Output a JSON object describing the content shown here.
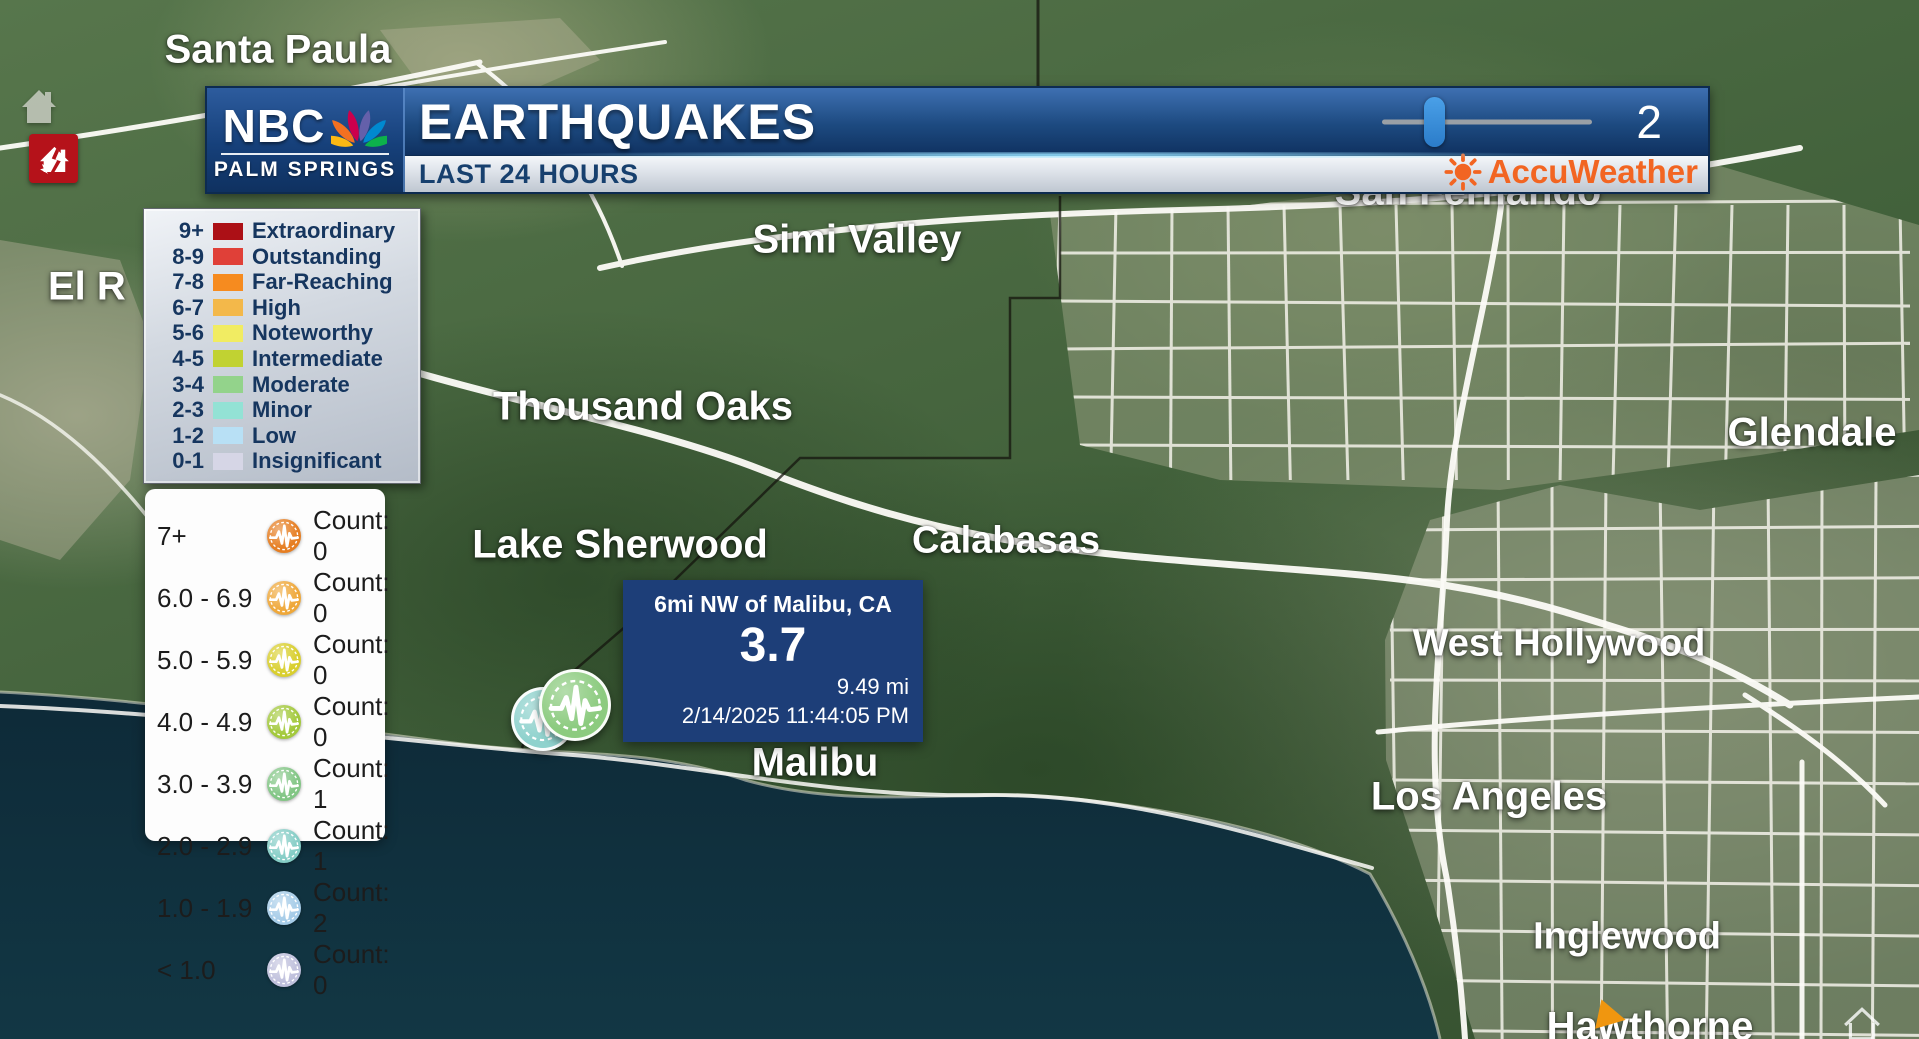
{
  "header": {
    "station_name": "NBC",
    "station_sub": "PALM SPRINGS",
    "title": "EARTHQUAKES",
    "subtitle": "LAST 24 HOURS",
    "slider": {
      "value": "2"
    },
    "accuweather_label": "AccuWeather",
    "colors": {
      "bar_blue": "#1d4a80",
      "silver": "#dde2e9",
      "accu_orange": "#f26522",
      "slider_blue": "#2b7cc9"
    }
  },
  "magnitude_legend": {
    "rows": [
      {
        "range": "9+",
        "label": "Extraordinary",
        "color": "#ac1016"
      },
      {
        "range": "8-9",
        "label": "Outstanding",
        "color": "#e04038"
      },
      {
        "range": "7-8",
        "label": "Far-Reaching",
        "color": "#f68b1f"
      },
      {
        "range": "6-7",
        "label": "High",
        "color": "#f3b84a"
      },
      {
        "range": "5-6",
        "label": "Noteworthy",
        "color": "#f1ec62"
      },
      {
        "range": "4-5",
        "label": "Intermediate",
        "color": "#c1d232"
      },
      {
        "range": "3-4",
        "label": "Moderate",
        "color": "#93d38b"
      },
      {
        "range": "2-3",
        "label": "Minor",
        "color": "#93e2d5"
      },
      {
        "range": "1-2",
        "label": "Low",
        "color": "#b8e0f5"
      },
      {
        "range": "0-1",
        "label": "Insignificant",
        "color": "#d6d6e6"
      }
    ]
  },
  "count_panel": {
    "rows": [
      {
        "range": "7+",
        "count_label": "Count: 0",
        "color": "#e67e22"
      },
      {
        "range": "6.0 - 6.9",
        "count_label": "Count: 0",
        "color": "#efa83a"
      },
      {
        "range": "5.0 - 5.9",
        "count_label": "Count: 0",
        "color": "#d9cf2e"
      },
      {
        "range": "4.0 - 4.9",
        "count_label": "Count: 0",
        "color": "#a3c93c"
      },
      {
        "range": "3.0 - 3.9",
        "count_label": "Count: 1",
        "color": "#82c685"
      },
      {
        "range": "2.0 - 2.9",
        "count_label": "Count: 1",
        "color": "#85cdc6"
      },
      {
        "range": "1.0 - 1.9",
        "count_label": "Count: 2",
        "color": "#a6cce8"
      },
      {
        "range": "< 1.0",
        "count_label": "Count: 0",
        "color": "#bfc0dc"
      }
    ]
  },
  "popup": {
    "location": "6mi NW of Malibu, CA",
    "magnitude": "3.7",
    "depth": "9.49 mi",
    "datetime": "2/14/2025 11:44:05 PM",
    "bg_color": "#1d3e78"
  },
  "markers": {
    "quake_green": {
      "color": "#8ccb7f"
    },
    "quake_teal": {
      "color": "#8fd2cd"
    }
  },
  "alert_icon_color": "#b5121a",
  "map": {
    "labels": [
      {
        "text": "Santa Paula"
      },
      {
        "text": "Simi Valley"
      },
      {
        "text": "San Fernando"
      },
      {
        "text": "El R"
      },
      {
        "text": "Thousand Oaks"
      },
      {
        "text": "Glendale"
      },
      {
        "text": "Lake Sherwood"
      },
      {
        "text": "Calabasas"
      },
      {
        "text": "West Hollywood"
      },
      {
        "text": "Malibu"
      },
      {
        "text": "Los Angeles"
      },
      {
        "text": "Inglewood"
      },
      {
        "text": "Hawthorne"
      }
    ]
  }
}
